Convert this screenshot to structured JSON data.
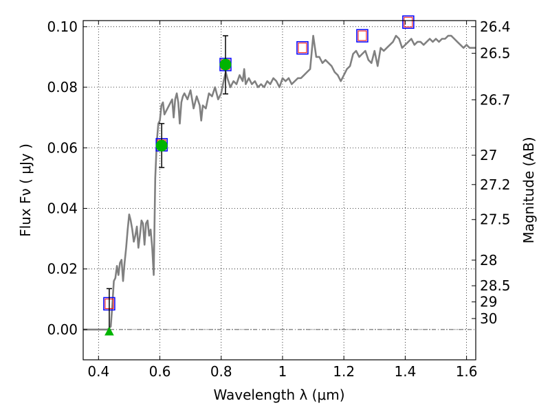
{
  "chart_data": {
    "type": "line",
    "xlabel": "Wavelength  λ (μm)",
    "ylabel": "Flux  Fν  ( μJy )",
    "y2label": "Magnitude (AB)",
    "xlim": [
      0.35,
      1.63
    ],
    "ylim": [
      -0.01,
      0.102
    ],
    "grid": true,
    "x_ticks": [
      {
        "v": 0.4,
        "label": "0.4"
      },
      {
        "v": 0.6,
        "label": "0.6"
      },
      {
        "v": 0.8,
        "label": "0.8"
      },
      {
        "v": 1.0,
        "label": "1"
      },
      {
        "v": 1.2,
        "label": "1.2"
      },
      {
        "v": 1.4,
        "label": "1.4"
      },
      {
        "v": 1.6,
        "label": "1.6"
      }
    ],
    "y_ticks": [
      {
        "v": 0.0,
        "label": "0.00"
      },
      {
        "v": 0.02,
        "label": "0.02"
      },
      {
        "v": 0.04,
        "label": "0.04"
      },
      {
        "v": 0.06,
        "label": "0.06"
      },
      {
        "v": 0.08,
        "label": "0.08"
      },
      {
        "v": 0.1,
        "label": "0.10"
      }
    ],
    "mag_ticks": [
      {
        "mag": 26.4,
        "label": "26.4"
      },
      {
        "mag": 26.5,
        "label": "26.5"
      },
      {
        "mag": 26.7,
        "label": "26.7"
      },
      {
        "mag": 27,
        "label": "27"
      },
      {
        "mag": 27.2,
        "label": "27.2"
      },
      {
        "mag": 27.5,
        "label": "27.5"
      },
      {
        "mag": 28,
        "label": "28"
      },
      {
        "mag": 28.5,
        "label": "28.5"
      },
      {
        "mag": 29,
        "label": "29"
      },
      {
        "mag": 30,
        "label": "30"
      }
    ],
    "colors": {
      "spectrum": "#808080",
      "model_box": "#0000ff",
      "model_box_inner": "#ff0000",
      "detection": "#00b400",
      "errorbar": "#000000"
    },
    "series": [
      {
        "kind": "spectrum",
        "points": [
          [
            0.35,
            0.0
          ],
          [
            0.43,
            0.0
          ],
          [
            0.44,
            0.001
          ],
          [
            0.445,
            0.008
          ],
          [
            0.45,
            0.016
          ],
          [
            0.455,
            0.017
          ],
          [
            0.46,
            0.021
          ],
          [
            0.465,
            0.018
          ],
          [
            0.47,
            0.022
          ],
          [
            0.475,
            0.023
          ],
          [
            0.48,
            0.016
          ],
          [
            0.485,
            0.022
          ],
          [
            0.49,
            0.027
          ],
          [
            0.495,
            0.033
          ],
          [
            0.5,
            0.038
          ],
          [
            0.505,
            0.036
          ],
          [
            0.51,
            0.033
          ],
          [
            0.515,
            0.029
          ],
          [
            0.52,
            0.031
          ],
          [
            0.525,
            0.034
          ],
          [
            0.53,
            0.027
          ],
          [
            0.535,
            0.031
          ],
          [
            0.54,
            0.036
          ],
          [
            0.545,
            0.035
          ],
          [
            0.55,
            0.028
          ],
          [
            0.555,
            0.035
          ],
          [
            0.56,
            0.036
          ],
          [
            0.565,
            0.031
          ],
          [
            0.57,
            0.033
          ],
          [
            0.575,
            0.027
          ],
          [
            0.58,
            0.018
          ],
          [
            0.585,
            0.05
          ],
          [
            0.59,
            0.062
          ],
          [
            0.595,
            0.068
          ],
          [
            0.6,
            0.069
          ],
          [
            0.605,
            0.074
          ],
          [
            0.61,
            0.075
          ],
          [
            0.615,
            0.071
          ],
          [
            0.62,
            0.072
          ],
          [
            0.63,
            0.074
          ],
          [
            0.64,
            0.076
          ],
          [
            0.645,
            0.07
          ],
          [
            0.65,
            0.076
          ],
          [
            0.655,
            0.078
          ],
          [
            0.66,
            0.075
          ],
          [
            0.665,
            0.068
          ],
          [
            0.67,
            0.075
          ],
          [
            0.675,
            0.077
          ],
          [
            0.68,
            0.078
          ],
          [
            0.69,
            0.076
          ],
          [
            0.7,
            0.079
          ],
          [
            0.705,
            0.076
          ],
          [
            0.71,
            0.073
          ],
          [
            0.72,
            0.077
          ],
          [
            0.73,
            0.074
          ],
          [
            0.735,
            0.069
          ],
          [
            0.74,
            0.074
          ],
          [
            0.75,
            0.073
          ],
          [
            0.76,
            0.078
          ],
          [
            0.77,
            0.077
          ],
          [
            0.78,
            0.08
          ],
          [
            0.79,
            0.076
          ],
          [
            0.8,
            0.078
          ],
          [
            0.81,
            0.083
          ],
          [
            0.815,
            0.085
          ],
          [
            0.82,
            0.083
          ],
          [
            0.83,
            0.08
          ],
          [
            0.84,
            0.082
          ],
          [
            0.85,
            0.081
          ],
          [
            0.86,
            0.084
          ],
          [
            0.87,
            0.082
          ],
          [
            0.875,
            0.086
          ],
          [
            0.88,
            0.081
          ],
          [
            0.89,
            0.083
          ],
          [
            0.9,
            0.081
          ],
          [
            0.91,
            0.082
          ],
          [
            0.92,
            0.08
          ],
          [
            0.93,
            0.081
          ],
          [
            0.94,
            0.08
          ],
          [
            0.95,
            0.082
          ],
          [
            0.96,
            0.081
          ],
          [
            0.97,
            0.083
          ],
          [
            0.98,
            0.082
          ],
          [
            0.99,
            0.08
          ],
          [
            1.0,
            0.083
          ],
          [
            1.01,
            0.082
          ],
          [
            1.02,
            0.083
          ],
          [
            1.03,
            0.081
          ],
          [
            1.04,
            0.082
          ],
          [
            1.05,
            0.083
          ],
          [
            1.06,
            0.083
          ],
          [
            1.07,
            0.084
          ],
          [
            1.08,
            0.085
          ],
          [
            1.09,
            0.086
          ],
          [
            1.1,
            0.097
          ],
          [
            1.11,
            0.09
          ],
          [
            1.12,
            0.09
          ],
          [
            1.13,
            0.088
          ],
          [
            1.14,
            0.089
          ],
          [
            1.15,
            0.088
          ],
          [
            1.16,
            0.087
          ],
          [
            1.17,
            0.085
          ],
          [
            1.18,
            0.084
          ],
          [
            1.19,
            0.082
          ],
          [
            1.2,
            0.084
          ],
          [
            1.21,
            0.086
          ],
          [
            1.22,
            0.087
          ],
          [
            1.23,
            0.091
          ],
          [
            1.24,
            0.092
          ],
          [
            1.25,
            0.09
          ],
          [
            1.26,
            0.091
          ],
          [
            1.27,
            0.092
          ],
          [
            1.28,
            0.089
          ],
          [
            1.29,
            0.088
          ],
          [
            1.3,
            0.092
          ],
          [
            1.31,
            0.087
          ],
          [
            1.32,
            0.093
          ],
          [
            1.33,
            0.092
          ],
          [
            1.34,
            0.093
          ],
          [
            1.35,
            0.094
          ],
          [
            1.36,
            0.095
          ],
          [
            1.37,
            0.097
          ],
          [
            1.38,
            0.096
          ],
          [
            1.39,
            0.093
          ],
          [
            1.4,
            0.094
          ],
          [
            1.41,
            0.095
          ],
          [
            1.42,
            0.096
          ],
          [
            1.43,
            0.094
          ],
          [
            1.44,
            0.095
          ],
          [
            1.45,
            0.095
          ],
          [
            1.46,
            0.094
          ],
          [
            1.47,
            0.095
          ],
          [
            1.48,
            0.096
          ],
          [
            1.49,
            0.095
          ],
          [
            1.5,
            0.096
          ],
          [
            1.51,
            0.095
          ],
          [
            1.52,
            0.096
          ],
          [
            1.53,
            0.096
          ],
          [
            1.54,
            0.097
          ],
          [
            1.55,
            0.097
          ],
          [
            1.56,
            0.096
          ],
          [
            1.57,
            0.095
          ],
          [
            1.58,
            0.094
          ],
          [
            1.59,
            0.093
          ],
          [
            1.6,
            0.094
          ],
          [
            1.61,
            0.093
          ],
          [
            1.63,
            0.093
          ]
        ]
      },
      {
        "kind": "model_points",
        "points": [
          {
            "x": 0.435,
            "y": 0.0085
          },
          {
            "x": 0.606,
            "y": 0.061
          },
          {
            "x": 0.814,
            "y": 0.0875
          },
          {
            "x": 1.065,
            "y": 0.093
          },
          {
            "x": 1.26,
            "y": 0.097
          },
          {
            "x": 1.41,
            "y": 0.1015
          }
        ]
      },
      {
        "kind": "detections",
        "points": [
          {
            "x": 0.606,
            "y": 0.0607,
            "yerr_low": 0.0072,
            "yerr_high": 0.0073
          },
          {
            "x": 0.814,
            "y": 0.0875,
            "yerr_low": 0.0097,
            "yerr_high": 0.0095
          }
        ]
      },
      {
        "kind": "upper_limit",
        "points": [
          {
            "x": 0.435,
            "y": -0.0007,
            "errtop": 0.0135
          }
        ]
      }
    ]
  }
}
